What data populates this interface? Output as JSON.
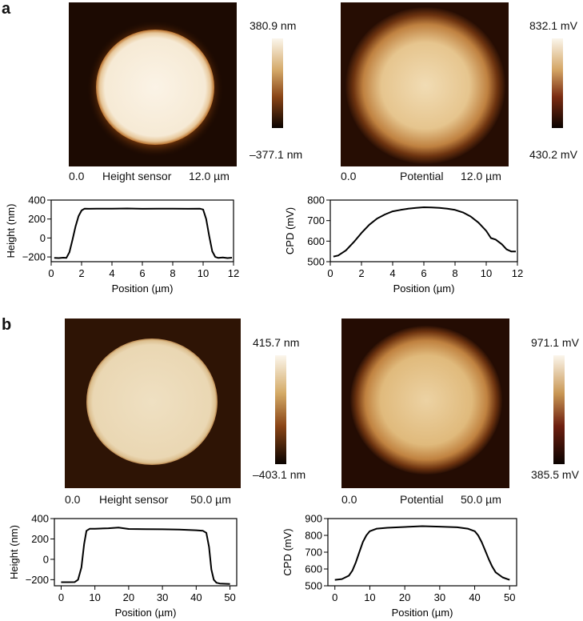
{
  "panels": {
    "a": {
      "label": "a",
      "height_map": {
        "scale_start": "0.0",
        "title": "Height sensor",
        "scale_end": "12.0 µm",
        "colorbar_max": "380.9 nm",
        "colorbar_min": "–377.1 nm"
      },
      "potential_map": {
        "scale_start": "0.0",
        "title": "Potential",
        "scale_end": "12.0 µm",
        "colorbar_max": "832.1 mV",
        "colorbar_min": "430.2 mV"
      }
    },
    "b": {
      "label": "b",
      "height_map": {
        "scale_start": "0.0",
        "title": "Height sensor",
        "scale_end": "50.0 µm",
        "colorbar_max": "415.7 nm",
        "colorbar_min": "–403.1 nm"
      },
      "potential_map": {
        "scale_start": "0.0",
        "title": "Potential",
        "scale_end": "50.0 µm",
        "colorbar_max": "971.1 mV",
        "colorbar_min": "385.5 mV"
      }
    }
  },
  "colors": {
    "afm_dark": "#1a0800",
    "afm_mid": "#8a4a16",
    "afm_light": "#f7eede",
    "line": "#000000"
  },
  "chart_data": [
    {
      "id": "a-height",
      "type": "line",
      "xlabel": "Position (µm)",
      "ylabel": "Height (nm)",
      "xlim": [
        0,
        12
      ],
      "ylim": [
        -250,
        400
      ],
      "xticks": [
        0,
        2,
        4,
        6,
        8,
        10,
        12
      ],
      "yticks": [
        -200,
        0,
        200,
        400
      ],
      "x": [
        0.2,
        0.5,
        0.8,
        1.0,
        1.2,
        1.4,
        1.6,
        1.8,
        2.0,
        2.2,
        2.5,
        3,
        4,
        5,
        6,
        7,
        8,
        9,
        9.8,
        10.0,
        10.2,
        10.4,
        10.6,
        10.8,
        11.0,
        11.3,
        11.6,
        11.9
      ],
      "y": [
        -210,
        -212,
        -208,
        -210,
        -150,
        -20,
        120,
        230,
        290,
        310,
        308,
        310,
        309,
        311,
        308,
        310,
        309,
        308,
        309,
        300,
        200,
        20,
        -140,
        -200,
        -210,
        -205,
        -212,
        -208
      ]
    },
    {
      "id": "a-cpd",
      "type": "line",
      "xlabel": "Position (µm)",
      "ylabel": "CPD (mV)",
      "xlim": [
        0,
        12
      ],
      "ylim": [
        500,
        800
      ],
      "xticks": [
        0,
        2,
        4,
        6,
        8,
        10,
        12
      ],
      "yticks": [
        500,
        600,
        700,
        800
      ],
      "x": [
        0.2,
        0.5,
        1.0,
        1.5,
        2.0,
        2.5,
        3.0,
        3.5,
        4.0,
        4.5,
        5.0,
        5.5,
        6.0,
        6.5,
        7.0,
        7.5,
        8.0,
        8.5,
        9.0,
        9.5,
        10.0,
        10.3,
        10.6,
        11.0,
        11.3,
        11.6,
        11.9
      ],
      "y": [
        525,
        530,
        555,
        595,
        640,
        680,
        710,
        730,
        745,
        752,
        758,
        762,
        765,
        764,
        762,
        758,
        752,
        740,
        720,
        690,
        650,
        615,
        608,
        585,
        560,
        550,
        550
      ]
    },
    {
      "id": "b-height",
      "type": "line",
      "xlabel": "Position (µm)",
      "ylabel": "Height (nm)",
      "xlim": [
        -2,
        52
      ],
      "ylim": [
        -260,
        400
      ],
      "xticks": [
        0,
        10,
        20,
        30,
        40,
        50
      ],
      "yticks": [
        -200,
        0,
        200,
        400
      ],
      "x": [
        0,
        2,
        4,
        5,
        6,
        6.8,
        7.5,
        8.5,
        10,
        14,
        17,
        20,
        25,
        30,
        35,
        40,
        42,
        43,
        43.8,
        44.5,
        45.2,
        46,
        47,
        48.5,
        50
      ],
      "y": [
        -225,
        -225,
        -224,
        -200,
        -80,
        150,
        280,
        300,
        300,
        305,
        312,
        298,
        296,
        295,
        292,
        285,
        280,
        260,
        120,
        -100,
        -200,
        -230,
        -238,
        -240,
        -242
      ]
    },
    {
      "id": "b-cpd",
      "type": "line",
      "xlabel": "Position (µm)",
      "ylabel": "CPD (mV)",
      "xlim": [
        -2,
        52
      ],
      "ylim": [
        500,
        900
      ],
      "xticks": [
        0,
        10,
        20,
        30,
        40,
        50
      ],
      "yticks": [
        500,
        600,
        700,
        800,
        900
      ],
      "x": [
        0,
        2,
        4,
        5,
        6,
        7,
        8,
        9,
        10,
        12,
        15,
        20,
        25,
        30,
        35,
        38,
        40,
        41,
        42,
        43,
        44,
        45,
        46,
        48,
        50
      ],
      "y": [
        535,
        540,
        560,
        590,
        640,
        700,
        760,
        800,
        825,
        840,
        845,
        850,
        855,
        852,
        848,
        840,
        825,
        800,
        760,
        710,
        660,
        615,
        580,
        550,
        535
      ]
    }
  ]
}
